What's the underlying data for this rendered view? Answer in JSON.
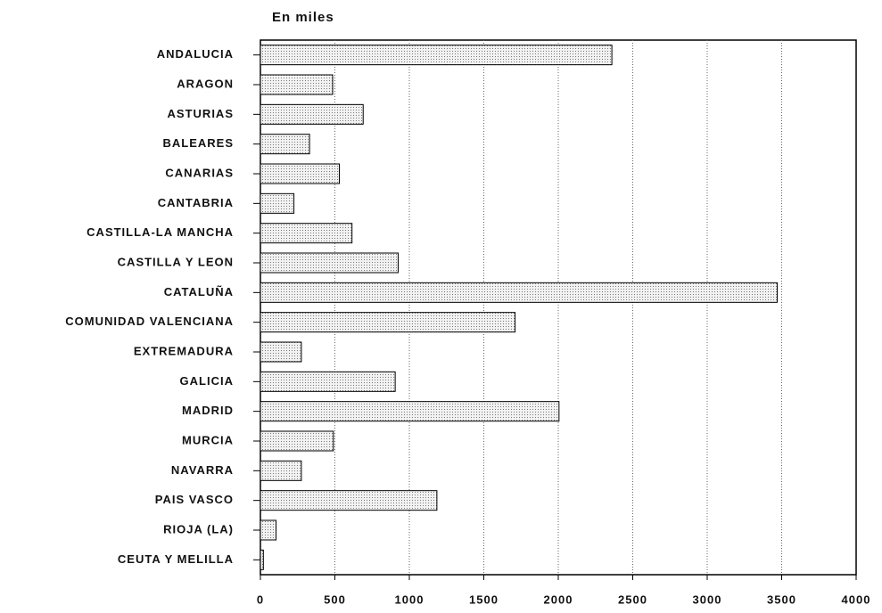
{
  "chart_data": {
    "type": "hbar",
    "title": "En miles",
    "categories": [
      "ANDALUCIA",
      "ARAGON",
      "ASTURIAS",
      "BALEARES",
      "CANARIAS",
      "CANTABRIA",
      "CASTILLA-LA MANCHA",
      "CASTILLA Y LEON",
      "CATALUÑA",
      "COMUNIDAD VALENCIANA",
      "EXTREMADURA",
      "GALICIA",
      "MADRID",
      "MURCIA",
      "NAVARRA",
      "PAIS VASCO",
      "RIOJA (LA)",
      "CEUTA Y MELILLA"
    ],
    "values": [
      2360,
      485,
      690,
      330,
      530,
      225,
      615,
      925,
      3470,
      1710,
      275,
      905,
      2005,
      490,
      275,
      1185,
      105,
      20
    ],
    "color": "#d9d9d9",
    "xlim": [
      0,
      4000
    ],
    "xticks": [
      0,
      500,
      1000,
      1500,
      2000,
      2500,
      3000,
      3500,
      4000
    ],
    "grid": true
  }
}
